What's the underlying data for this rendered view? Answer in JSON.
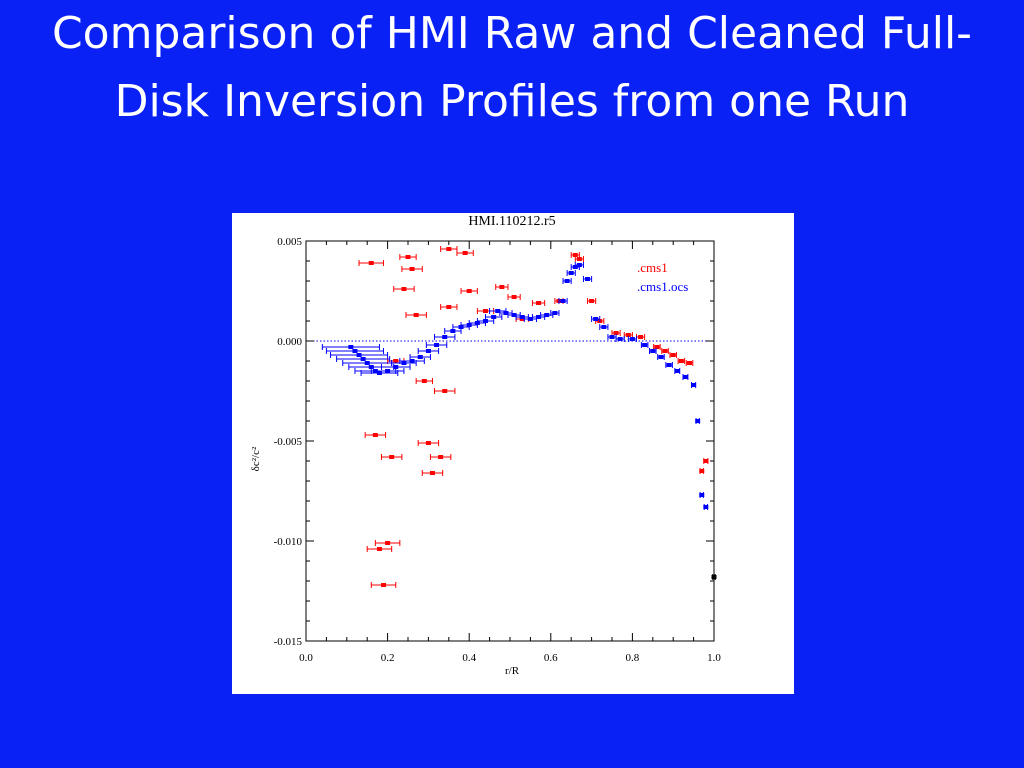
{
  "slide": {
    "title": "Comparison of HMI Raw and Cleaned Full-Disk Inversion Profiles from one Run",
    "background": "#0a21f5"
  },
  "chart_data": {
    "type": "scatter",
    "title": "HMI.110212.r5",
    "xlabel": "r/R",
    "ylabel": "δc²/c²",
    "xlim": [
      0.0,
      1.0
    ],
    "ylim": [
      -0.015,
      0.005
    ],
    "x_ticks": [
      "0.0",
      "0.2",
      "0.4",
      "0.6",
      "0.8",
      "1.0"
    ],
    "y_ticks": [
      "0.005",
      "0.000",
      "-0.005",
      "-0.010",
      "-0.015"
    ],
    "reference_line": {
      "y": 0.0,
      "style": "dotted",
      "color": "#0000ff"
    },
    "grid": false,
    "legend_position": "top-right",
    "series": [
      {
        "name": ".cms1",
        "color": "#ff0000",
        "points": [
          {
            "x": 0.16,
            "y": 0.0039,
            "xerr": 0.03
          },
          {
            "x": 0.25,
            "y": 0.0042,
            "xerr": 0.02
          },
          {
            "x": 0.26,
            "y": 0.0036,
            "xerr": 0.025
          },
          {
            "x": 0.35,
            "y": 0.0046,
            "xerr": 0.02
          },
          {
            "x": 0.39,
            "y": 0.0044,
            "xerr": 0.02
          },
          {
            "x": 0.24,
            "y": 0.0026,
            "xerr": 0.025
          },
          {
            "x": 0.27,
            "y": 0.0013,
            "xerr": 0.025
          },
          {
            "x": 0.35,
            "y": 0.0017,
            "xerr": 0.02
          },
          {
            "x": 0.4,
            "y": 0.0025,
            "xerr": 0.02
          },
          {
            "x": 0.44,
            "y": 0.0015,
            "xerr": 0.02
          },
          {
            "x": 0.48,
            "y": 0.0027,
            "xerr": 0.015
          },
          {
            "x": 0.51,
            "y": 0.0022,
            "xerr": 0.015
          },
          {
            "x": 0.53,
            "y": 0.0011,
            "xerr": 0.015
          },
          {
            "x": 0.57,
            "y": 0.0019,
            "xerr": 0.015
          },
          {
            "x": 0.62,
            "y": 0.002,
            "xerr": 0.01
          },
          {
            "x": 0.66,
            "y": 0.0043,
            "xerr": 0.01
          },
          {
            "x": 0.67,
            "y": 0.0041,
            "xerr": 0.01
          },
          {
            "x": 0.7,
            "y": 0.002,
            "xerr": 0.01
          },
          {
            "x": 0.72,
            "y": 0.001,
            "xerr": 0.01
          },
          {
            "x": 0.76,
            "y": 0.0004,
            "xerr": 0.01
          },
          {
            "x": 0.79,
            "y": 0.0003,
            "xerr": 0.01
          },
          {
            "x": 0.82,
            "y": 0.0002,
            "xerr": 0.01
          },
          {
            "x": 0.86,
            "y": -0.0003,
            "xerr": 0.008
          },
          {
            "x": 0.88,
            "y": -0.0005,
            "xerr": 0.008
          },
          {
            "x": 0.9,
            "y": -0.0007,
            "xerr": 0.008
          },
          {
            "x": 0.92,
            "y": -0.001,
            "xerr": 0.008
          },
          {
            "x": 0.94,
            "y": -0.0011,
            "xerr": 0.008
          },
          {
            "x": 0.98,
            "y": -0.006,
            "xerr": 0.005
          },
          {
            "x": 0.97,
            "y": -0.0065,
            "xerr": 0.004
          },
          {
            "x": 0.22,
            "y": -0.001,
            "xerr": 0.02
          },
          {
            "x": 0.29,
            "y": -0.002,
            "xerr": 0.02
          },
          {
            "x": 0.34,
            "y": -0.0025,
            "xerr": 0.025
          },
          {
            "x": 0.17,
            "y": -0.0047,
            "xerr": 0.025
          },
          {
            "x": 0.3,
            "y": -0.0051,
            "xerr": 0.025
          },
          {
            "x": 0.21,
            "y": -0.0058,
            "xerr": 0.025
          },
          {
            "x": 0.33,
            "y": -0.0058,
            "xerr": 0.025
          },
          {
            "x": 0.31,
            "y": -0.0066,
            "xerr": 0.025
          },
          {
            "x": 0.2,
            "y": -0.0101,
            "xerr": 0.03
          },
          {
            "x": 0.18,
            "y": -0.0104,
            "xerr": 0.03
          },
          {
            "x": 0.19,
            "y": -0.0122,
            "xerr": 0.03
          }
        ]
      },
      {
        "name": ".cms1.ocs",
        "color": "#0000ff",
        "points": [
          {
            "x": 0.11,
            "y": -0.0003,
            "xerr": 0.07
          },
          {
            "x": 0.12,
            "y": -0.0005,
            "xerr": 0.07
          },
          {
            "x": 0.13,
            "y": -0.0007,
            "xerr": 0.07
          },
          {
            "x": 0.14,
            "y": -0.0009,
            "xerr": 0.065
          },
          {
            "x": 0.15,
            "y": -0.0011,
            "xerr": 0.06
          },
          {
            "x": 0.16,
            "y": -0.0013,
            "xerr": 0.055
          },
          {
            "x": 0.17,
            "y": -0.0015,
            "xerr": 0.05
          },
          {
            "x": 0.18,
            "y": -0.0016,
            "xerr": 0.045
          },
          {
            "x": 0.2,
            "y": -0.0015,
            "xerr": 0.04
          },
          {
            "x": 0.22,
            "y": -0.0013,
            "xerr": 0.035
          },
          {
            "x": 0.24,
            "y": -0.0011,
            "xerr": 0.03
          },
          {
            "x": 0.26,
            "y": -0.001,
            "xerr": 0.03
          },
          {
            "x": 0.28,
            "y": -0.0008,
            "xerr": 0.025
          },
          {
            "x": 0.3,
            "y": -0.0005,
            "xerr": 0.025
          },
          {
            "x": 0.32,
            "y": -0.0002,
            "xerr": 0.025
          },
          {
            "x": 0.34,
            "y": 0.0002,
            "xerr": 0.025
          },
          {
            "x": 0.36,
            "y": 0.0005,
            "xerr": 0.02
          },
          {
            "x": 0.38,
            "y": 0.0007,
            "xerr": 0.02
          },
          {
            "x": 0.4,
            "y": 0.0008,
            "xerr": 0.02
          },
          {
            "x": 0.42,
            "y": 0.0009,
            "xerr": 0.02
          },
          {
            "x": 0.44,
            "y": 0.001,
            "xerr": 0.02
          },
          {
            "x": 0.46,
            "y": 0.0012,
            "xerr": 0.02
          },
          {
            "x": 0.47,
            "y": 0.0015,
            "xerr": 0.02
          },
          {
            "x": 0.49,
            "y": 0.0014,
            "xerr": 0.015
          },
          {
            "x": 0.51,
            "y": 0.0013,
            "xerr": 0.015
          },
          {
            "x": 0.53,
            "y": 0.0012,
            "xerr": 0.015
          },
          {
            "x": 0.55,
            "y": 0.0011,
            "xerr": 0.015
          },
          {
            "x": 0.57,
            "y": 0.0012,
            "xerr": 0.015
          },
          {
            "x": 0.59,
            "y": 0.0013,
            "xerr": 0.015
          },
          {
            "x": 0.61,
            "y": 0.0014,
            "xerr": 0.01
          },
          {
            "x": 0.63,
            "y": 0.002,
            "xerr": 0.01
          },
          {
            "x": 0.64,
            "y": 0.003,
            "xerr": 0.01
          },
          {
            "x": 0.65,
            "y": 0.0034,
            "xerr": 0.01
          },
          {
            "x": 0.66,
            "y": 0.0037,
            "xerr": 0.01
          },
          {
            "x": 0.67,
            "y": 0.0038,
            "xerr": 0.01
          },
          {
            "x": 0.69,
            "y": 0.0031,
            "xerr": 0.01
          },
          {
            "x": 0.71,
            "y": 0.0011,
            "xerr": 0.01
          },
          {
            "x": 0.73,
            "y": 0.0007,
            "xerr": 0.01
          },
          {
            "x": 0.75,
            "y": 0.0002,
            "xerr": 0.01
          },
          {
            "x": 0.77,
            "y": 0.0001,
            "xerr": 0.01
          },
          {
            "x": 0.8,
            "y": 0.0001,
            "xerr": 0.01
          },
          {
            "x": 0.83,
            "y": -0.0002,
            "xerr": 0.008
          },
          {
            "x": 0.85,
            "y": -0.0005,
            "xerr": 0.008
          },
          {
            "x": 0.87,
            "y": -0.0008,
            "xerr": 0.008
          },
          {
            "x": 0.89,
            "y": -0.0012,
            "xerr": 0.008
          },
          {
            "x": 0.91,
            "y": -0.0015,
            "xerr": 0.006
          },
          {
            "x": 0.93,
            "y": -0.0018,
            "xerr": 0.006
          },
          {
            "x": 0.95,
            "y": -0.0022,
            "xerr": 0.005
          },
          {
            "x": 0.96,
            "y": -0.004,
            "xerr": 0.004
          },
          {
            "x": 0.97,
            "y": -0.0077,
            "xerr": 0.004
          },
          {
            "x": 0.98,
            "y": -0.0083,
            "xerr": 0.004
          }
        ]
      },
      {
        "color": "#000000",
        "points": [
          {
            "x": 1.0,
            "y": -0.0118,
            "xerr": 0.003
          }
        ]
      }
    ]
  }
}
